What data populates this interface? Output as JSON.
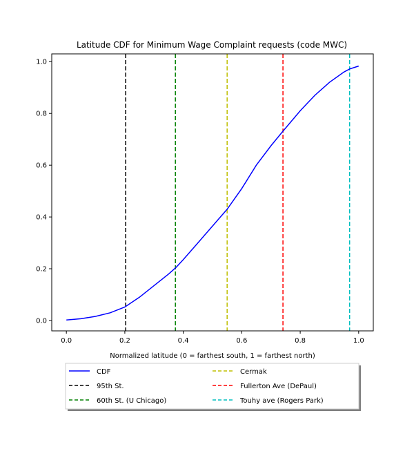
{
  "chart_data": {
    "type": "line",
    "title": "Latitude CDF for Minimum Wage Complaint  requests (code MWC)",
    "xlabel": "Normalized latitude (0 = farthest south, 1 = farthest north)",
    "ylabel": "",
    "xlim": [
      -0.05,
      1.05
    ],
    "ylim": [
      -0.04,
      1.03
    ],
    "xticks": [
      0.0,
      0.2,
      0.4,
      0.6,
      0.8,
      1.0
    ],
    "xtick_labels": [
      "0.0",
      "0.2",
      "0.4",
      "0.6",
      "0.8",
      "1.0"
    ],
    "yticks": [
      0.0,
      0.2,
      0.4,
      0.6,
      0.8,
      1.0
    ],
    "ytick_labels": [
      "0.0",
      "0.2",
      "0.4",
      "0.6",
      "0.8",
      "1.0"
    ],
    "grid": false,
    "legend_placement": "below",
    "series": [
      {
        "name": "CDF",
        "color": "#0000ff",
        "style": "solid",
        "x": [
          0.0,
          0.05,
          0.1,
          0.15,
          0.2,
          0.25,
          0.3,
          0.35,
          0.375,
          0.4,
          0.45,
          0.5,
          0.55,
          0.6,
          0.65,
          0.7,
          0.74,
          0.8,
          0.85,
          0.9,
          0.95,
          0.97,
          1.0
        ],
        "y": [
          0.002,
          0.007,
          0.016,
          0.03,
          0.052,
          0.09,
          0.135,
          0.18,
          0.205,
          0.235,
          0.3,
          0.365,
          0.43,
          0.51,
          0.6,
          0.675,
          0.73,
          0.81,
          0.87,
          0.92,
          0.96,
          0.972,
          0.983
        ]
      }
    ],
    "vlines": [
      {
        "name": "95th St.",
        "x": 0.203,
        "color": "#000000"
      },
      {
        "name": "60th St. (U Chicago)",
        "x": 0.373,
        "color": "#008000"
      },
      {
        "name": "Cermak",
        "x": 0.55,
        "color": "#bfbf00"
      },
      {
        "name": "Fullerton Ave (DePaul)",
        "x": 0.741,
        "color": "#ff0000"
      },
      {
        "name": "Touhy ave (Rogers Park)",
        "x": 0.969,
        "color": "#00bfbf"
      }
    ],
    "legend": [
      {
        "label": "CDF",
        "color": "#0000ff",
        "style": "solid"
      },
      {
        "label": "95th St.",
        "color": "#000000",
        "style": "dashed"
      },
      {
        "label": "60th St. (U Chicago)",
        "color": "#008000",
        "style": "dashed"
      },
      {
        "label": "Cermak",
        "color": "#bfbf00",
        "style": "dashed"
      },
      {
        "label": "Fullerton Ave (DePaul)",
        "color": "#ff0000",
        "style": "dashed"
      },
      {
        "label": "Touhy ave (Rogers Park)",
        "color": "#00bfbf",
        "style": "dashed"
      }
    ]
  }
}
